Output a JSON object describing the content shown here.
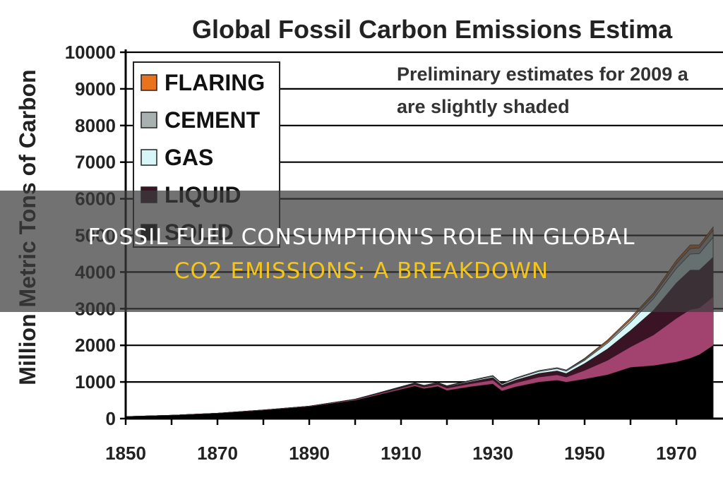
{
  "overlay": {
    "line1": "FOSSIL FUEL CONSUMPTION'S ROLE IN GLOBAL",
    "line2": "CO2 EMISSIONS: A BREAKDOWN"
  },
  "colors": {
    "flaring": "#e8731c",
    "cement": "#a9b0b0",
    "gas": "#d6f6f8",
    "liquid": "#3a1425",
    "solid": "#000000",
    "gas_band_shaded": "#b54a7c",
    "banner_accent": "#f5c518"
  },
  "chart_data": {
    "type": "area",
    "title": "Global Fossil Carbon Emissions Estima",
    "xlabel": "",
    "ylabel": "Million Metric Tons of Carbon",
    "xlim": [
      1850,
      1978
    ],
    "ylim": [
      0,
      10000
    ],
    "x_ticks": [
      1850,
      1870,
      1890,
      1910,
      1930,
      1950,
      1970
    ],
    "y_ticks": [
      0,
      1000,
      2000,
      3000,
      4000,
      5000,
      6000,
      7000,
      8000,
      9000,
      10000
    ],
    "grid": "horizontal",
    "stacked": true,
    "legend": {
      "position": "top-left",
      "entries": [
        "FLARING",
        "CEMENT",
        "GAS",
        "LIQUID",
        "SOLID"
      ]
    },
    "annotation": {
      "line1": "Preliminary estimates for 2009 a",
      "line2": "are slightly shaded"
    },
    "x": [
      1850,
      1860,
      1870,
      1880,
      1890,
      1900,
      1905,
      1910,
      1913,
      1915,
      1918,
      1920,
      1925,
      1930,
      1932,
      1935,
      1940,
      1944,
      1946,
      1950,
      1955,
      1960,
      1965,
      1970,
      1973,
      1975,
      1978
    ],
    "series": [
      {
        "name": "SOLID",
        "values": [
          55,
          90,
          145,
          230,
          330,
          500,
          650,
          800,
          890,
          820,
          880,
          770,
          870,
          950,
          760,
          870,
          1000,
          1050,
          1000,
          1080,
          1200,
          1400,
          1450,
          1550,
          1650,
          1750,
          2000
        ]
      },
      {
        "name": "LIQUID",
        "values": [
          0,
          0,
          1,
          5,
          10,
          25,
          35,
          50,
          60,
          65,
          80,
          100,
          130,
          170,
          150,
          180,
          230,
          250,
          230,
          420,
          700,
          1000,
          1500,
          2150,
          2400,
          2300,
          2400
        ]
      },
      {
        "name": "GAS",
        "values": [
          0,
          0,
          0,
          0,
          0,
          5,
          7,
          10,
          12,
          12,
          14,
          15,
          25,
          35,
          32,
          40,
          55,
          65,
          65,
          90,
          160,
          230,
          320,
          400,
          440,
          450,
          550
        ]
      },
      {
        "name": "CEMENT",
        "values": [
          0,
          0,
          0,
          0,
          0,
          0,
          5,
          10,
          10,
          10,
          10,
          10,
          15,
          20,
          15,
          20,
          25,
          25,
          25,
          30,
          45,
          70,
          90,
          130,
          150,
          160,
          190
        ]
      },
      {
        "name": "FLARING",
        "values": [
          0,
          0,
          0,
          0,
          0,
          0,
          0,
          0,
          0,
          0,
          0,
          0,
          0,
          0,
          0,
          0,
          0,
          0,
          5,
          25,
          40,
          50,
          70,
          90,
          100,
          80,
          90
        ]
      }
    ]
  }
}
